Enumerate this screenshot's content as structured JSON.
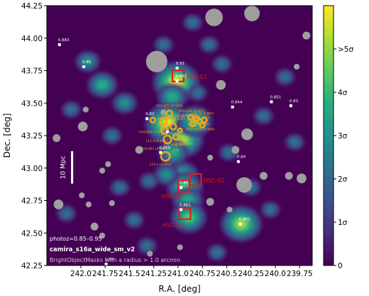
{
  "chart_data": {
    "type": "heatmap",
    "xlabel": "R.A. [deg]",
    "ylabel": "Dec. [deg]",
    "xlim": [
      242.35,
      239.62
    ],
    "ylim": [
      42.25,
      44.25
    ],
    "xticks": [
      {
        "v": 242.0,
        "label": "242.0"
      },
      {
        "v": 241.75,
        "label": "241.75"
      },
      {
        "v": 241.5,
        "label": "241.5"
      },
      {
        "v": 241.25,
        "label": "241.25"
      },
      {
        "v": 241.0,
        "label": "241.0"
      },
      {
        "v": 240.75,
        "label": "240.75"
      },
      {
        "v": 240.5,
        "label": "240.5"
      },
      {
        "v": 240.25,
        "label": "240.25"
      },
      {
        "v": 240.0,
        "label": "240.0"
      },
      {
        "v": 239.75,
        "label": "239.75"
      }
    ],
    "yticks": [
      {
        "v": 42.25,
        "label": "42.25"
      },
      {
        "v": 42.5,
        "label": "42.50"
      },
      {
        "v": 42.75,
        "label": "42.75"
      },
      {
        "v": 43.0,
        "label": "43.00"
      },
      {
        "v": 43.25,
        "label": "43.25"
      },
      {
        "v": 43.5,
        "label": "43.50"
      },
      {
        "v": 43.75,
        "label": "43.75"
      },
      {
        "v": 44.0,
        "label": "44.00"
      },
      {
        "v": 44.25,
        "label": "44.25"
      }
    ],
    "colorbar": {
      "range": [
        0,
        6
      ],
      "ticks": [
        {
          "v": 0,
          "label": "0"
        },
        {
          "v": 1,
          "label": "1σ"
        },
        {
          "v": 2,
          "label": "2σ"
        },
        {
          "v": 3,
          "label": "3σ"
        },
        {
          "v": 4,
          "label": "4σ"
        },
        {
          "v": 5,
          "label": ">5σ"
        }
      ]
    },
    "colors": {
      "background": "#440154",
      "levels": [
        "#440154",
        "#472d7b",
        "#3b528b",
        "#2c728e",
        "#21918c",
        "#28ae80",
        "#5ec962",
        "#addc30",
        "#fde725"
      ],
      "mask": "#9e9e9e",
      "cluster_box": "#e31a1c",
      "galaxy_ring": "#f2a51d",
      "sources": "#ffffff"
    },
    "density_peaks": [
      {
        "x": 241.02,
        "y": 43.66,
        "amp": 5.8
      },
      {
        "x": 241.06,
        "y": 43.55,
        "amp": 3.5
      },
      {
        "x": 241.1,
        "y": 43.34,
        "amp": 5.2
      },
      {
        "x": 240.95,
        "y": 43.22,
        "amp": 4.5
      },
      {
        "x": 240.83,
        "y": 43.36,
        "amp": 3.8
      },
      {
        "x": 241.05,
        "y": 43.12,
        "amp": 3.2
      },
      {
        "x": 240.95,
        "y": 42.95,
        "amp": 3.4
      },
      {
        "x": 240.93,
        "y": 42.85,
        "amp": 4.3
      },
      {
        "x": 240.9,
        "y": 42.75,
        "amp": 3.2
      },
      {
        "x": 240.89,
        "y": 42.62,
        "amp": 4.1
      },
      {
        "x": 241.12,
        "y": 42.95,
        "amp": 2.6
      },
      {
        "x": 241.93,
        "y": 43.82,
        "amp": 2.6
      },
      {
        "x": 241.78,
        "y": 43.64,
        "amp": 3.6
      },
      {
        "x": 241.55,
        "y": 43.5,
        "amp": 2.6
      },
      {
        "x": 241.68,
        "y": 43.25,
        "amp": 2.3
      },
      {
        "x": 241.3,
        "y": 42.9,
        "amp": 2.2
      },
      {
        "x": 241.45,
        "y": 42.6,
        "amp": 2.4
      },
      {
        "x": 241.32,
        "y": 42.4,
        "amp": 2.0
      },
      {
        "x": 241.15,
        "y": 43.95,
        "amp": 2.2
      },
      {
        "x": 240.85,
        "y": 44.12,
        "amp": 2.4
      },
      {
        "x": 240.8,
        "y": 43.58,
        "amp": 2.3
      },
      {
        "x": 240.55,
        "y": 43.8,
        "amp": 2.0
      },
      {
        "x": 240.48,
        "y": 43.12,
        "amp": 2.2
      },
      {
        "x": 240.35,
        "y": 42.57,
        "amp": 4.6
      },
      {
        "x": 240.25,
        "y": 42.85,
        "amp": 2.4
      },
      {
        "x": 240.05,
        "y": 42.68,
        "amp": 2.2
      },
      {
        "x": 240.12,
        "y": 43.4,
        "amp": 2.3
      },
      {
        "x": 239.8,
        "y": 43.2,
        "amp": 2.0
      },
      {
        "x": 239.9,
        "y": 43.7,
        "amp": 2.1
      },
      {
        "x": 241.6,
        "y": 42.85,
        "amp": 2.0
      },
      {
        "x": 242.15,
        "y": 42.65,
        "amp": 1.8
      },
      {
        "x": 242.1,
        "y": 43.45,
        "amp": 1.9
      },
      {
        "x": 240.6,
        "y": 42.35,
        "amp": 2.0
      },
      {
        "x": 240.68,
        "y": 43.95,
        "amp": 1.9
      }
    ],
    "masks": [
      {
        "x": 240.63,
        "y": 44.16,
        "r": 0.09
      },
      {
        "x": 240.24,
        "y": 44.19,
        "r": 0.08
      },
      {
        "x": 241.22,
        "y": 43.82,
        "r": 0.11
      },
      {
        "x": 240.56,
        "y": 43.64,
        "r": 0.05
      },
      {
        "x": 239.68,
        "y": 44.02,
        "r": 0.04
      },
      {
        "x": 239.78,
        "y": 43.78,
        "r": 0.03
      },
      {
        "x": 240.29,
        "y": 43.26,
        "r": 0.06
      },
      {
        "x": 240.41,
        "y": 43.14,
        "r": 0.04
      },
      {
        "x": 240.67,
        "y": 43.08,
        "r": 0.03
      },
      {
        "x": 240.32,
        "y": 42.87,
        "r": 0.08
      },
      {
        "x": 240.47,
        "y": 42.68,
        "r": 0.03
      },
      {
        "x": 240.12,
        "y": 42.94,
        "r": 0.04
      },
      {
        "x": 239.86,
        "y": 42.94,
        "r": 0.04
      },
      {
        "x": 239.73,
        "y": 42.92,
        "r": 0.05
      },
      {
        "x": 240.67,
        "y": 42.74,
        "r": 0.04
      },
      {
        "x": 241.4,
        "y": 43.14,
        "r": 0.04
      },
      {
        "x": 241.72,
        "y": 43.03,
        "r": 0.03
      },
      {
        "x": 241.78,
        "y": 42.98,
        "r": 0.03
      },
      {
        "x": 241.92,
        "y": 42.72,
        "r": 0.03
      },
      {
        "x": 241.86,
        "y": 42.55,
        "r": 0.04
      },
      {
        "x": 241.78,
        "y": 42.48,
        "r": 0.03
      },
      {
        "x": 241.99,
        "y": 42.79,
        "r": 0.03
      },
      {
        "x": 241.68,
        "y": 42.73,
        "r": 0.03
      },
      {
        "x": 241.29,
        "y": 42.34,
        "r": 0.03
      },
      {
        "x": 240.98,
        "y": 42.39,
        "r": 0.03
      },
      {
        "x": 241.98,
        "y": 43.32,
        "r": 0.05
      },
      {
        "x": 242.25,
        "y": 43.23,
        "r": 0.04
      },
      {
        "x": 242.23,
        "y": 42.72,
        "r": 0.05
      },
      {
        "x": 241.95,
        "y": 43.45,
        "r": 0.03
      },
      {
        "x": 241.15,
        "y": 43.43,
        "r": 0.03
      }
    ],
    "galaxies": [
      {
        "x": 241.15,
        "y": 43.36,
        "r": 0.035
      },
      {
        "x": 241.14,
        "y": 43.29,
        "r": 0.035
      },
      {
        "x": 241.11,
        "y": 43.22,
        "r": 0.04
      },
      {
        "x": 241.09,
        "y": 43.42,
        "r": 0.03
      },
      {
        "x": 241.05,
        "y": 43.32,
        "r": 0.03
      },
      {
        "x": 241.02,
        "y": 43.24,
        "r": 0.03
      },
      {
        "x": 240.87,
        "y": 43.39,
        "r": 0.025
      },
      {
        "x": 240.85,
        "y": 43.34,
        "r": 0.025
      },
      {
        "x": 240.81,
        "y": 43.38,
        "r": 0.025
      },
      {
        "x": 240.78,
        "y": 43.36,
        "r": 0.025
      },
      {
        "x": 240.75,
        "y": 43.33,
        "r": 0.025
      },
      {
        "x": 240.73,
        "y": 43.37,
        "r": 0.025
      },
      {
        "x": 241.13,
        "y": 43.09,
        "r": 0.045
      },
      {
        "x": 240.98,
        "y": 43.29,
        "r": 0.02
      },
      {
        "x": 241.26,
        "y": 43.37,
        "r": 0.025
      }
    ],
    "boxes": [
      {
        "x": 241.0,
        "y": 43.71,
        "label": "HSC-S1"
      },
      {
        "x": 240.82,
        "y": 42.91,
        "label": "HSC-S1"
      },
      {
        "x": 240.94,
        "y": 42.86,
        "label": "HSC-S2"
      },
      {
        "x": 240.93,
        "y": 42.65,
        "label": "HSC-S3"
      }
    ],
    "sources": [
      {
        "x": 242.22,
        "y": 43.95,
        "label": "0.883"
      },
      {
        "x": 241.97,
        "y": 43.78,
        "label": "0.85"
      },
      {
        "x": 241.01,
        "y": 43.77,
        "label": "0.93"
      },
      {
        "x": 241.01,
        "y": 43.67,
        "label": "0.882"
      },
      {
        "x": 240.44,
        "y": 43.47,
        "label": "0.844"
      },
      {
        "x": 240.04,
        "y": 43.51,
        "label": "0.851"
      },
      {
        "x": 239.84,
        "y": 43.48,
        "label": "0.83"
      },
      {
        "x": 241.32,
        "y": 43.38,
        "label": "0.82"
      },
      {
        "x": 241.11,
        "y": 43.28,
        "label": ""
      },
      {
        "x": 241.18,
        "y": 43.12,
        "label": "0.859"
      },
      {
        "x": 240.38,
        "y": 43.05,
        "label": "0.84"
      },
      {
        "x": 240.97,
        "y": 42.85,
        "label": "0.86"
      },
      {
        "x": 240.97,
        "y": 42.68,
        "label": "0.861"
      },
      {
        "x": 241.74,
        "y": 42.26,
        "label": "0.89"
      },
      {
        "x": 240.36,
        "y": 42.57,
        "label": "0.892"
      }
    ],
    "galaxy_labels": [
      {
        "x": 241.09,
        "y": 43.47,
        "text": "H19-677 (0.860)"
      },
      {
        "x": 241.07,
        "y": 43.37,
        "text": "H19-626 (0.859)"
      },
      {
        "x": 241.16,
        "y": 43.33,
        "text": "L12-11"
      },
      {
        "x": 241.02,
        "y": 43.39,
        "text": "L12-10 (0.847)"
      },
      {
        "x": 240.92,
        "y": 43.4,
        "text": "L12-9 (0.869)"
      },
      {
        "x": 240.86,
        "y": 43.43,
        "text": "H19-676 (0.867)"
      },
      {
        "x": 240.74,
        "y": 43.41,
        "text": "L12-9 (0.867)"
      },
      {
        "x": 240.76,
        "y": 43.38,
        "text": "J019-1020"
      },
      {
        "x": 240.79,
        "y": 43.33,
        "text": "L12-8 (0.869)"
      },
      {
        "x": 240.77,
        "y": 43.29,
        "text": "H19-1000 (0.860)"
      },
      {
        "x": 241.27,
        "y": 43.27,
        "text": "H19-616 (0.875)"
      },
      {
        "x": 241.22,
        "y": 43.2,
        "text": "L12-3 (0.851)"
      },
      {
        "x": 241.25,
        "y": 43.14,
        "text": "H19-661 (0.881)"
      },
      {
        "x": 241.03,
        "y": 43.17,
        "text": "L12-4 (0.866)"
      },
      {
        "x": 240.95,
        "y": 43.18,
        "text": "L12-6 (0.869)"
      },
      {
        "x": 241.18,
        "y": 43.02,
        "text": "L12-1 (0.853)"
      },
      {
        "x": 241.09,
        "y": 43.26,
        "text": "0.86"
      },
      {
        "x": 241.14,
        "y": 43.25,
        "text": "878"
      },
      {
        "x": 241.02,
        "y": 43.13,
        "text": "0.8"
      },
      {
        "x": 240.98,
        "y": 43.21,
        "text": "RTS"
      }
    ],
    "scale_bar": {
      "label": "10 Mpc",
      "x": 242.09,
      "y_top": 43.13,
      "y_bottom": 42.88
    },
    "annotations": [
      {
        "text": "photoz=0.85–0.95"
      },
      {
        "text": "camira_s16a_wide_sm_v2"
      },
      {
        "text": "BrightObjectMasks with a radius > 1.0 arcmin"
      }
    ]
  }
}
